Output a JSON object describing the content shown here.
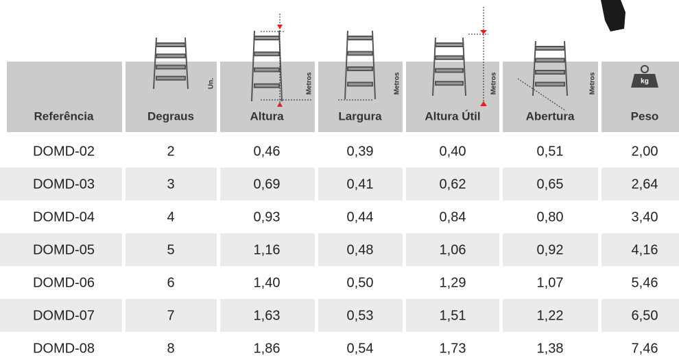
{
  "table": {
    "headers": [
      {
        "label": "Referência"
      },
      {
        "label": "Degraus",
        "unit": "Un."
      },
      {
        "label": "Altura",
        "unit": "Metros"
      },
      {
        "label": "Largura",
        "unit": "Metros"
      },
      {
        "label": "Altura Útil",
        "unit": "Metros"
      },
      {
        "label": "Abertura",
        "unit": "Metros"
      },
      {
        "label": "Peso",
        "unit": "kg"
      }
    ],
    "rows": [
      [
        "DOMD-02",
        "2",
        "0,46",
        "0,39",
        "0,40",
        "0,51",
        "2,00"
      ],
      [
        "DOMD-03",
        "3",
        "0,69",
        "0,41",
        "0,62",
        "0,65",
        "2,64"
      ],
      [
        "DOMD-04",
        "4",
        "0,93",
        "0,44",
        "0,84",
        "0,80",
        "3,40"
      ],
      [
        "DOMD-05",
        "5",
        "1,16",
        "0,48",
        "1,06",
        "0,92",
        "4,16"
      ],
      [
        "DOMD-06",
        "6",
        "1,40",
        "0,50",
        "1,29",
        "1,07",
        "5,46"
      ],
      [
        "DOMD-07",
        "7",
        "1,63",
        "0,53",
        "1,51",
        "1,22",
        "6,50"
      ],
      [
        "DOMD-08",
        "8",
        "1,86",
        "0,54",
        "1,73",
        "1,38",
        "7,46"
      ]
    ]
  }
}
